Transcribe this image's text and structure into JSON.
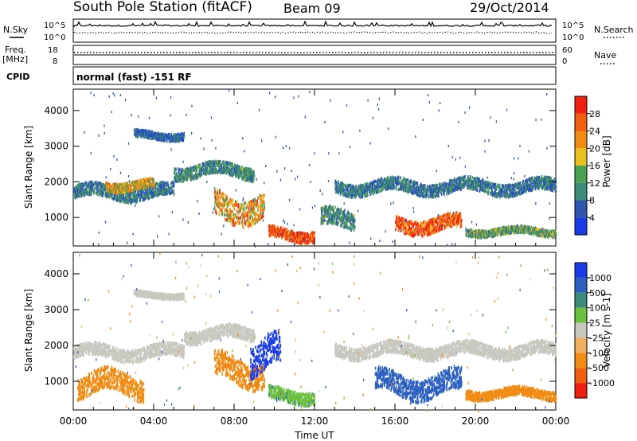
{
  "header": {
    "station": "South Pole Station (fitACF)",
    "beam": "Beam 09",
    "date": "29/Oct/2014"
  },
  "top_panels": {
    "nsky_label": "N.Sky",
    "nsky_ticks": [
      "10^5",
      "10^0"
    ],
    "nsearch_label": "N.Search",
    "nsearch_ticks": [
      "10^5",
      "10^0"
    ],
    "freq_label_1": "Freq.",
    "freq_label_2": "[MHz]",
    "freq_ticks": [
      "18",
      "8"
    ],
    "nave_label": "Nave",
    "nave_ticks": [
      "60",
      "0"
    ],
    "cpid_label": "CPID",
    "cpid_value": "normal (fast) -151 RF"
  },
  "colors": {
    "power_scale": [
      "#1a3ce6",
      "#2f55b0",
      "#3c8a78",
      "#49a050",
      "#e8c020",
      "#f08c14",
      "#f06010",
      "#ee2010"
    ],
    "velocity_scale": [
      "#1a3ce6",
      "#2c60c0",
      "#3c8a78",
      "#6cc040",
      "#c8c8c0",
      "#f0b060",
      "#f08c14",
      "#f06010",
      "#ee2010"
    ]
  },
  "chart_data": [
    {
      "type": "heatmap",
      "title": "Power",
      "xlabel": "",
      "ylabel": "Slant Range [km]",
      "x_ticks": [
        "00:00",
        "04:00",
        "08:00",
        "12:00",
        "16:00",
        "20:00",
        "00:00"
      ],
      "y_ticks": [
        "1000",
        "2000",
        "3000",
        "4000"
      ],
      "xlim_hours": [
        0,
        24
      ],
      "ylim_km": [
        200,
        4600
      ],
      "colorbar": {
        "label": "Power [dB]",
        "ticks": [
          "4",
          "8",
          "12",
          "16",
          "20",
          "24",
          "28"
        ],
        "range": [
          0,
          30
        ]
      },
      "scatter_regions": [
        {
          "t0": 0.0,
          "t1": 5.0,
          "r_center": 1700,
          "r_width": 350,
          "value": 8
        },
        {
          "t0": 1.6,
          "t1": 4.0,
          "r_center": 1900,
          "r_width": 250,
          "value": 18
        },
        {
          "t0": 5.0,
          "t1": 9.0,
          "r_center": 2300,
          "r_width": 350,
          "value": 10
        },
        {
          "t0": 7.0,
          "t1": 9.5,
          "r_center": 1300,
          "r_width": 700,
          "value": 20
        },
        {
          "t0": 9.7,
          "t1": 12.0,
          "r_center": 520,
          "r_width": 300,
          "value": 28
        },
        {
          "t0": 12.3,
          "t1": 14.0,
          "r_center": 900,
          "r_width": 500,
          "value": 10
        },
        {
          "t0": 13.0,
          "t1": 24.0,
          "r_center": 1850,
          "r_width": 350,
          "value": 8
        },
        {
          "t0": 16.0,
          "t1": 19.3,
          "r_center": 800,
          "r_width": 400,
          "value": 26
        },
        {
          "t0": 19.5,
          "t1": 24.0,
          "r_center": 600,
          "r_width": 200,
          "value": 12
        },
        {
          "t0": 3.0,
          "t1": 5.5,
          "r_center": 3300,
          "r_width": 200,
          "value": 6
        }
      ]
    },
    {
      "type": "heatmap",
      "title": "Velocity",
      "xlabel": "Time UT",
      "ylabel": "Slant Range [km]",
      "x_ticks": [
        "00:00",
        "04:00",
        "08:00",
        "12:00",
        "16:00",
        "20:00",
        "00:00"
      ],
      "y_ticks": [
        "1000",
        "2000",
        "3000",
        "4000"
      ],
      "xlim_hours": [
        0,
        24
      ],
      "ylim_km": [
        200,
        4600
      ],
      "colorbar": {
        "label": "Velocity [m s-1]",
        "ticks": [
          "1000",
          "500",
          "100",
          "25",
          "-25",
          "-100",
          "-500",
          "-1000"
        ]
      },
      "scatter_regions": [
        {
          "t0": 0.0,
          "t1": 5.5,
          "r_center": 1800,
          "r_width": 350,
          "value": 0
        },
        {
          "t0": 5.5,
          "t1": 9.0,
          "r_center": 2300,
          "r_width": 350,
          "value": 0
        },
        {
          "t0": 7.0,
          "t1": 9.5,
          "r_center": 1300,
          "r_width": 700,
          "value": -400
        },
        {
          "t0": 8.8,
          "t1": 10.3,
          "r_center": 1700,
          "r_width": 900,
          "value": 700
        },
        {
          "t0": 9.7,
          "t1": 12.0,
          "r_center": 600,
          "r_width": 350,
          "value": 80
        },
        {
          "t0": 0.2,
          "t1": 3.5,
          "r_center": 900,
          "r_width": 600,
          "value": -200
        },
        {
          "t0": 13.0,
          "t1": 24.0,
          "r_center": 1850,
          "r_width": 350,
          "value": 0
        },
        {
          "t0": 15.0,
          "t1": 19.3,
          "r_center": 900,
          "r_width": 600,
          "value": 200
        },
        {
          "t0": 19.5,
          "t1": 24.0,
          "r_center": 650,
          "r_width": 250,
          "value": -300
        },
        {
          "t0": 3.0,
          "t1": 5.5,
          "r_center": 3400,
          "r_width": 150,
          "value": 0
        }
      ]
    }
  ]
}
